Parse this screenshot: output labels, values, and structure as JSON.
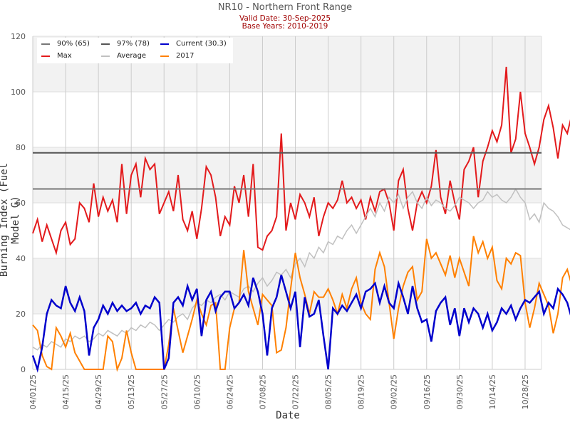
{
  "header": {
    "title": "NR10 - Northern Front Range",
    "subtitle_1": "Valid Date: 30-Sep-2025",
    "subtitle_2": "Base Years: 2010-2019"
  },
  "chart_data": {
    "type": "line",
    "title": "NR10 - Northern Front Range",
    "subtitle": [
      "Valid Date: 30-Sep-2025",
      "Base Years: 2010-2019"
    ],
    "xlabel": "Date",
    "ylabel": "Burning Index (Fuel Model G)",
    "ylim": [
      0,
      120
    ],
    "yticks": [
      0,
      20,
      40,
      60,
      80,
      100,
      120
    ],
    "x_start": "04/01/25",
    "x_days": 217,
    "x_step_days": 2,
    "xticks": [
      {
        "day": 0,
        "label": "04/01/25"
      },
      {
        "day": 14,
        "label": "04/15/25"
      },
      {
        "day": 28,
        "label": "04/29/25"
      },
      {
        "day": 42,
        "label": "05/13/25"
      },
      {
        "day": 56,
        "label": "05/27/25"
      },
      {
        "day": 70,
        "label": "06/10/25"
      },
      {
        "day": 84,
        "label": "06/24/25"
      },
      {
        "day": 98,
        "label": "07/08/25"
      },
      {
        "day": 112,
        "label": "07/22/25"
      },
      {
        "day": 126,
        "label": "08/05/25"
      },
      {
        "day": 140,
        "label": "08/19/25"
      },
      {
        "day": 154,
        "label": "09/02/25"
      },
      {
        "day": 168,
        "label": "09/16/25"
      },
      {
        "day": 182,
        "label": "09/30/25"
      },
      {
        "day": 196,
        "label": "10/14/25"
      },
      {
        "day": 210,
        "label": "10/28/25"
      }
    ],
    "grid": true,
    "bands": [
      [
        20,
        40
      ],
      [
        60,
        80
      ],
      [
        100,
        120
      ]
    ],
    "legend_position": "top-left",
    "legend": [
      {
        "label": "90% (65)",
        "color": "#777777"
      },
      {
        "label": "97% (78)",
        "color": "#555555"
      },
      {
        "label": "Current (30.3)",
        "color": "#0000cc"
      },
      {
        "label": "Max",
        "color": "#e31a1c"
      },
      {
        "label": "Average",
        "color": "#c0c0c0"
      },
      {
        "label": "2017",
        "color": "#ff8000"
      }
    ],
    "thresholds": [
      {
        "name": "90%",
        "value": 65,
        "color": "#777777"
      },
      {
        "name": "97%",
        "value": 78,
        "color": "#555555"
      }
    ],
    "series": [
      {
        "name": "Max",
        "color": "#e31a1c",
        "width": 2,
        "values": [
          49,
          54,
          46,
          52,
          47,
          42,
          50,
          53,
          45,
          47,
          60,
          58,
          53,
          67,
          55,
          62,
          57,
          61,
          53,
          74,
          56,
          70,
          74,
          62,
          76,
          72,
          74,
          56,
          60,
          64,
          57,
          70,
          54,
          50,
          57,
          47,
          58,
          73,
          70,
          62,
          48,
          55,
          52,
          66,
          60,
          70,
          55,
          74,
          44,
          43,
          48,
          50,
          55,
          85,
          50,
          60,
          54,
          63,
          60,
          55,
          62,
          48,
          55,
          60,
          58,
          61,
          68,
          60,
          62,
          58,
          61,
          54,
          62,
          57,
          64,
          65,
          60,
          50,
          68,
          72,
          58,
          50,
          60,
          64,
          60,
          66,
          79,
          62,
          56,
          68,
          60,
          54,
          72,
          75,
          80,
          62,
          75,
          80,
          86,
          82,
          88,
          109,
          78,
          83,
          100,
          85,
          80,
          74,
          80,
          90,
          95,
          87,
          76,
          88,
          85,
          92,
          80,
          95,
          82,
          80,
          85,
          80,
          86,
          90,
          95,
          85,
          100,
          88,
          82,
          93,
          92,
          86,
          90,
          84,
          86,
          92,
          95,
          98,
          102,
          95,
          82,
          80,
          85,
          88,
          96,
          90,
          80,
          88,
          84,
          113,
          80,
          92,
          85,
          95,
          100,
          80,
          108,
          82,
          87,
          93,
          86,
          95,
          89,
          91,
          80,
          85,
          95,
          102,
          95,
          82,
          70,
          84,
          93,
          98,
          75,
          80,
          85,
          98,
          96,
          92,
          82,
          90,
          105,
          85,
          80,
          94,
          97,
          90,
          95,
          84,
          86,
          80,
          95,
          97,
          93,
          75,
          88,
          92,
          86,
          97,
          80,
          96,
          92,
          84,
          78,
          94,
          83,
          93,
          70
        ]
      },
      {
        "name": "Average",
        "color": "#c0c0c0",
        "width": 1.5,
        "values": [
          8,
          7,
          9,
          8,
          10,
          9,
          8,
          11,
          10,
          12,
          11,
          12,
          10,
          11,
          13,
          12,
          14,
          13,
          12,
          14,
          13,
          15,
          14,
          16,
          15,
          17,
          16,
          14,
          16,
          18,
          17,
          19,
          20,
          18,
          22,
          24,
          23,
          25,
          24,
          26,
          27,
          25,
          28,
          27,
          26,
          29,
          30,
          28,
          31,
          33,
          30,
          32,
          35,
          34,
          36,
          33,
          38,
          40,
          37,
          42,
          40,
          44,
          42,
          46,
          45,
          48,
          47,
          50,
          52,
          49,
          52,
          55,
          58,
          55,
          60,
          57,
          62,
          60,
          63,
          58,
          62,
          64,
          60,
          58,
          62,
          59,
          61,
          60,
          58,
          57,
          59,
          62,
          61,
          60,
          58,
          60,
          61,
          64,
          62,
          63,
          61,
          60,
          62,
          65,
          62,
          60,
          54,
          56,
          53,
          60,
          58,
          57,
          55,
          52,
          51,
          50,
          53,
          55,
          52,
          54,
          58,
          57,
          55,
          60,
          56,
          58,
          52,
          44,
          35,
          40,
          45,
          40,
          38,
          43,
          42,
          40,
          37,
          38,
          40,
          41,
          39,
          38,
          36,
          35,
          30,
          29,
          26,
          25,
          20,
          17
        ]
      },
      {
        "name": "2017",
        "color": "#ff8000",
        "width": 2,
        "values": [
          16,
          14,
          5,
          1,
          0,
          15,
          12,
          8,
          13,
          6,
          3,
          0,
          0,
          0,
          0,
          0,
          12,
          10,
          0,
          4,
          14,
          6,
          0,
          0,
          0,
          0,
          0,
          0,
          0,
          9,
          22,
          14,
          6,
          12,
          18,
          25,
          20,
          16,
          23,
          24,
          0,
          0,
          15,
          22,
          24,
          43,
          28,
          22,
          16,
          27,
          25,
          23,
          6,
          7,
          15,
          29,
          42,
          33,
          27,
          20,
          28,
          26,
          26,
          29,
          25,
          20,
          27,
          22,
          29,
          33,
          24,
          20,
          18,
          36,
          42,
          37,
          24,
          11,
          22,
          30,
          35,
          37,
          25,
          28,
          47,
          40,
          42,
          38,
          34,
          41,
          33,
          40,
          35,
          30,
          48,
          42,
          46,
          40,
          44,
          32,
          29,
          40,
          38,
          42,
          41,
          24,
          15,
          22,
          31,
          27,
          23,
          13,
          20,
          33,
          36,
          30,
          27,
          38,
          44,
          36,
          42,
          45,
          39,
          43,
          41,
          26,
          31,
          36,
          43,
          37,
          34,
          41,
          48,
          40,
          46,
          44,
          48,
          42,
          33,
          29,
          40,
          42,
          47,
          53,
          38,
          30,
          20,
          10,
          5,
          18,
          26,
          34,
          28,
          38,
          30,
          22,
          11,
          5,
          6,
          22,
          37,
          22,
          23,
          0,
          18,
          33,
          30,
          28,
          36,
          15,
          0,
          5,
          33,
          30,
          32,
          25,
          14,
          22,
          37,
          44,
          38,
          41,
          33,
          17,
          40,
          46,
          42,
          38,
          31,
          26,
          42,
          37,
          48,
          42,
          24,
          45,
          42,
          27,
          48
        ]
      },
      {
        "name": "Current",
        "color": "#0000cc",
        "width": 2.5,
        "values": [
          5,
          0,
          8,
          20,
          25,
          23,
          22,
          30,
          24,
          21,
          26,
          21,
          5,
          15,
          18,
          23,
          20,
          24,
          21,
          23,
          21,
          22,
          24,
          20,
          23,
          22,
          26,
          24,
          0,
          4,
          24,
          26,
          23,
          30,
          25,
          29,
          12,
          25,
          28,
          21,
          26,
          28,
          28,
          22,
          24,
          27,
          23,
          33,
          28,
          20,
          5,
          22,
          26,
          34,
          28,
          22,
          28,
          8,
          26,
          19,
          20,
          25,
          12,
          0,
          22,
          20,
          23,
          21,
          24,
          27,
          22,
          28,
          29,
          31,
          24,
          30,
          24,
          22,
          31,
          26,
          20,
          30,
          22,
          17,
          18,
          10,
          21,
          24,
          26,
          16,
          22,
          12,
          22,
          17,
          22,
          20,
          15,
          20,
          14,
          17,
          22,
          20,
          23,
          18,
          22,
          25,
          24,
          26,
          28,
          20,
          24,
          22,
          29,
          27,
          24,
          18,
          30,
          22,
          24,
          19,
          24,
          22,
          28,
          30,
          23,
          20,
          18,
          16,
          23,
          24,
          25,
          22,
          30,
          37,
          33,
          36,
          31,
          29,
          33,
          30
        ]
      }
    ]
  }
}
